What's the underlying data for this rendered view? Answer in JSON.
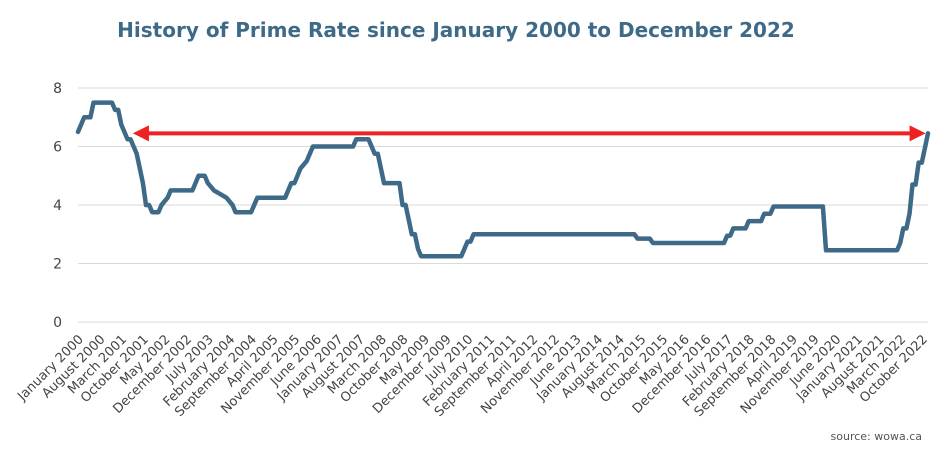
{
  "chart_data": {
    "type": "line",
    "title": "History of Prime Rate since January 2000 to December 2022",
    "source": "source: wowa.ca",
    "xlabel": "",
    "ylabel": "",
    "ylim": [
      0,
      8
    ],
    "yticks": [
      0,
      2,
      4,
      6,
      8
    ],
    "grid": true,
    "x_tick_labels": [
      "January 2000",
      "August 2000",
      "March 2001",
      "October 2001",
      "May 2002",
      "December 2002",
      "July 2003",
      "February 2004",
      "September 2004",
      "April 2005",
      "November 2005",
      "June 2006",
      "January 2007",
      "August 2007",
      "March 2008",
      "October 2008",
      "May 2009",
      "December 2009",
      "July 2010",
      "February 2011",
      "September 2011",
      "April 2012",
      "November 2012",
      "June 2013",
      "January 2014",
      "August 2014",
      "March 2015",
      "October 2015",
      "May 2016",
      "December 2016",
      "July 2017",
      "February 2018",
      "September 2018",
      "April 2019",
      "November 2019",
      "June 2020",
      "January 2021",
      "August 2021",
      "March 2022",
      "October 2022"
    ],
    "series": [
      {
        "color": "#3e6a88",
        "points": [
          [
            "2000-01",
            6.5
          ],
          [
            "2000-02",
            6.75
          ],
          [
            "2000-03",
            7.0
          ],
          [
            "2000-05",
            7.0
          ],
          [
            "2000-06",
            7.5
          ],
          [
            "2000-12",
            7.5
          ],
          [
            "2001-01",
            7.25
          ],
          [
            "2001-02",
            7.25
          ],
          [
            "2001-03",
            6.75
          ],
          [
            "2001-05",
            6.25
          ],
          [
            "2001-06",
            6.25
          ],
          [
            "2001-07",
            6.0
          ],
          [
            "2001-08",
            5.75
          ],
          [
            "2001-09",
            5.25
          ],
          [
            "2001-10",
            4.75
          ],
          [
            "2001-11",
            4.0
          ],
          [
            "2001-12",
            4.0
          ],
          [
            "2002-01",
            3.75
          ],
          [
            "2002-03",
            3.75
          ],
          [
            "2002-04",
            4.0
          ],
          [
            "2002-06",
            4.25
          ],
          [
            "2002-07",
            4.5
          ],
          [
            "2003-02",
            4.5
          ],
          [
            "2003-03",
            4.75
          ],
          [
            "2003-04",
            5.0
          ],
          [
            "2003-06",
            5.0
          ],
          [
            "2003-07",
            4.75
          ],
          [
            "2003-09",
            4.5
          ],
          [
            "2004-01",
            4.25
          ],
          [
            "2004-03",
            4.0
          ],
          [
            "2004-04",
            3.75
          ],
          [
            "2004-09",
            3.75
          ],
          [
            "2004-10",
            4.0
          ],
          [
            "2004-11",
            4.25
          ],
          [
            "2005-08",
            4.25
          ],
          [
            "2005-09",
            4.5
          ],
          [
            "2005-10",
            4.75
          ],
          [
            "2005-11",
            4.75
          ],
          [
            "2005-12",
            5.0
          ],
          [
            "2006-01",
            5.25
          ],
          [
            "2006-03",
            5.5
          ],
          [
            "2006-04",
            5.75
          ],
          [
            "2006-05",
            6.0
          ],
          [
            "2007-06",
            6.0
          ],
          [
            "2007-07",
            6.25
          ],
          [
            "2007-11",
            6.25
          ],
          [
            "2007-12",
            6.0
          ],
          [
            "2008-01",
            5.75
          ],
          [
            "2008-02",
            5.75
          ],
          [
            "2008-03",
            5.25
          ],
          [
            "2008-04",
            4.75
          ],
          [
            "2008-09",
            4.75
          ],
          [
            "2008-10",
            4.0
          ],
          [
            "2008-11",
            4.0
          ],
          [
            "2008-12",
            3.5
          ],
          [
            "2009-01",
            3.0
          ],
          [
            "2009-02",
            3.0
          ],
          [
            "2009-03",
            2.5
          ],
          [
            "2009-04",
            2.25
          ],
          [
            "2010-05",
            2.25
          ],
          [
            "2010-06",
            2.5
          ],
          [
            "2010-07",
            2.75
          ],
          [
            "2010-08",
            2.75
          ],
          [
            "2010-09",
            3.0
          ],
          [
            "2015-01",
            3.0
          ],
          [
            "2015-02",
            2.85
          ],
          [
            "2015-06",
            2.85
          ],
          [
            "2015-07",
            2.7
          ],
          [
            "2017-06",
            2.7
          ],
          [
            "2017-07",
            2.95
          ],
          [
            "2017-08",
            2.95
          ],
          [
            "2017-09",
            3.2
          ],
          [
            "2018-01",
            3.2
          ],
          [
            "2018-02",
            3.45
          ],
          [
            "2018-06",
            3.45
          ],
          [
            "2018-07",
            3.7
          ],
          [
            "2018-09",
            3.7
          ],
          [
            "2018-10",
            3.95
          ],
          [
            "2020-02",
            3.95
          ],
          [
            "2020-03",
            2.45
          ],
          [
            "2022-02",
            2.45
          ],
          [
            "2022-03",
            2.7
          ],
          [
            "2022-04",
            3.2
          ],
          [
            "2022-05",
            3.2
          ],
          [
            "2022-06",
            3.7
          ],
          [
            "2022-07",
            4.7
          ],
          [
            "2022-08",
            4.7
          ],
          [
            "2022-09",
            5.45
          ],
          [
            "2022-10",
            5.45
          ],
          [
            "2022-11",
            5.95
          ],
          [
            "2022-12",
            6.45
          ]
        ]
      }
    ],
    "annotation": {
      "type": "double-arrow",
      "color": "#ee2222",
      "from_x": "2001-06",
      "to_x": "2022-12",
      "y": 6.45
    }
  }
}
